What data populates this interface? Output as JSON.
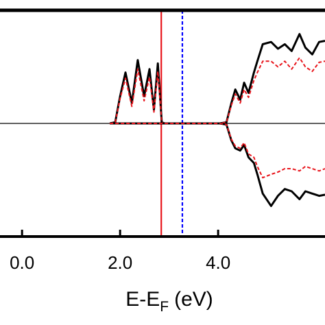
{
  "chart_data": {
    "type": "line",
    "xlabel": "E-E",
    "xlabel_sub": "F",
    "xlabel_suffix": "(eV)",
    "xlim": [
      -0.45,
      6.18
    ],
    "ylim": [
      -1,
      1
    ],
    "xticks": [
      {
        "value": 0,
        "label": "0.0"
      },
      {
        "value": 2,
        "label": "2.0"
      },
      {
        "value": 4,
        "label": "4.0"
      }
    ],
    "zero_line": true,
    "x": [
      1.79,
      1.9,
      2.0,
      2.11,
      2.24,
      2.36,
      2.49,
      2.6,
      2.69,
      2.77,
      2.85,
      2.91,
      4.03,
      4.17,
      4.27,
      4.35,
      4.45,
      4.53,
      4.62,
      4.73,
      4.8,
      4.91,
      5.08,
      5.22,
      5.36,
      5.5,
      5.66,
      5.78,
      5.92,
      6.06,
      6.18
    ],
    "series": [
      {
        "color": "#000000",
        "dashed": false,
        "values": [
          0,
          0.01,
          0.24,
          0.45,
          0.18,
          0.56,
          0.24,
          0.48,
          0.12,
          0.53,
          0.01,
          0,
          0,
          0.01,
          0.18,
          0.3,
          0.21,
          0.36,
          0.27,
          0.45,
          0.55,
          0.7,
          0.72,
          0.66,
          0.7,
          0.64,
          0.79,
          0.67,
          0.61,
          0.72,
          0.73
        ]
      },
      {
        "color": "#e8141b",
        "dashed": true,
        "values": [
          0,
          0.01,
          0.22,
          0.4,
          0.15,
          0.48,
          0.2,
          0.41,
          0.1,
          0.46,
          0.01,
          0,
          0,
          0.01,
          0.16,
          0.26,
          0.18,
          0.3,
          0.23,
          0.38,
          0.45,
          0.55,
          0.55,
          0.5,
          0.55,
          0.48,
          0.58,
          0.5,
          0.46,
          0.54,
          0.55
        ]
      },
      {
        "color": "#000000",
        "dashed": false,
        "values": [
          0,
          0,
          0,
          0,
          0,
          0,
          0,
          0,
          0,
          0,
          0,
          0,
          0,
          -0.01,
          -0.15,
          -0.22,
          -0.24,
          -0.19,
          -0.3,
          -0.35,
          -0.45,
          -0.62,
          -0.73,
          -0.64,
          -0.58,
          -0.6,
          -0.67,
          -0.6,
          -0.62,
          -0.64,
          -0.63
        ]
      },
      {
        "color": "#e8141b",
        "dashed": true,
        "values": [
          0,
          0,
          0,
          0,
          0,
          0,
          0,
          0,
          0,
          0,
          0,
          0,
          0,
          -0.01,
          -0.14,
          -0.2,
          -0.22,
          -0.17,
          -0.27,
          -0.3,
          -0.38,
          -0.48,
          -0.45,
          -0.43,
          -0.4,
          -0.4,
          -0.42,
          -0.38,
          -0.4,
          -0.42,
          -0.4
        ]
      }
    ],
    "vlines": [
      {
        "x": 2.84,
        "color": "#e8141b",
        "dashed": false
      },
      {
        "x": 3.27,
        "color": "#0000ff",
        "dashed": true
      }
    ]
  }
}
